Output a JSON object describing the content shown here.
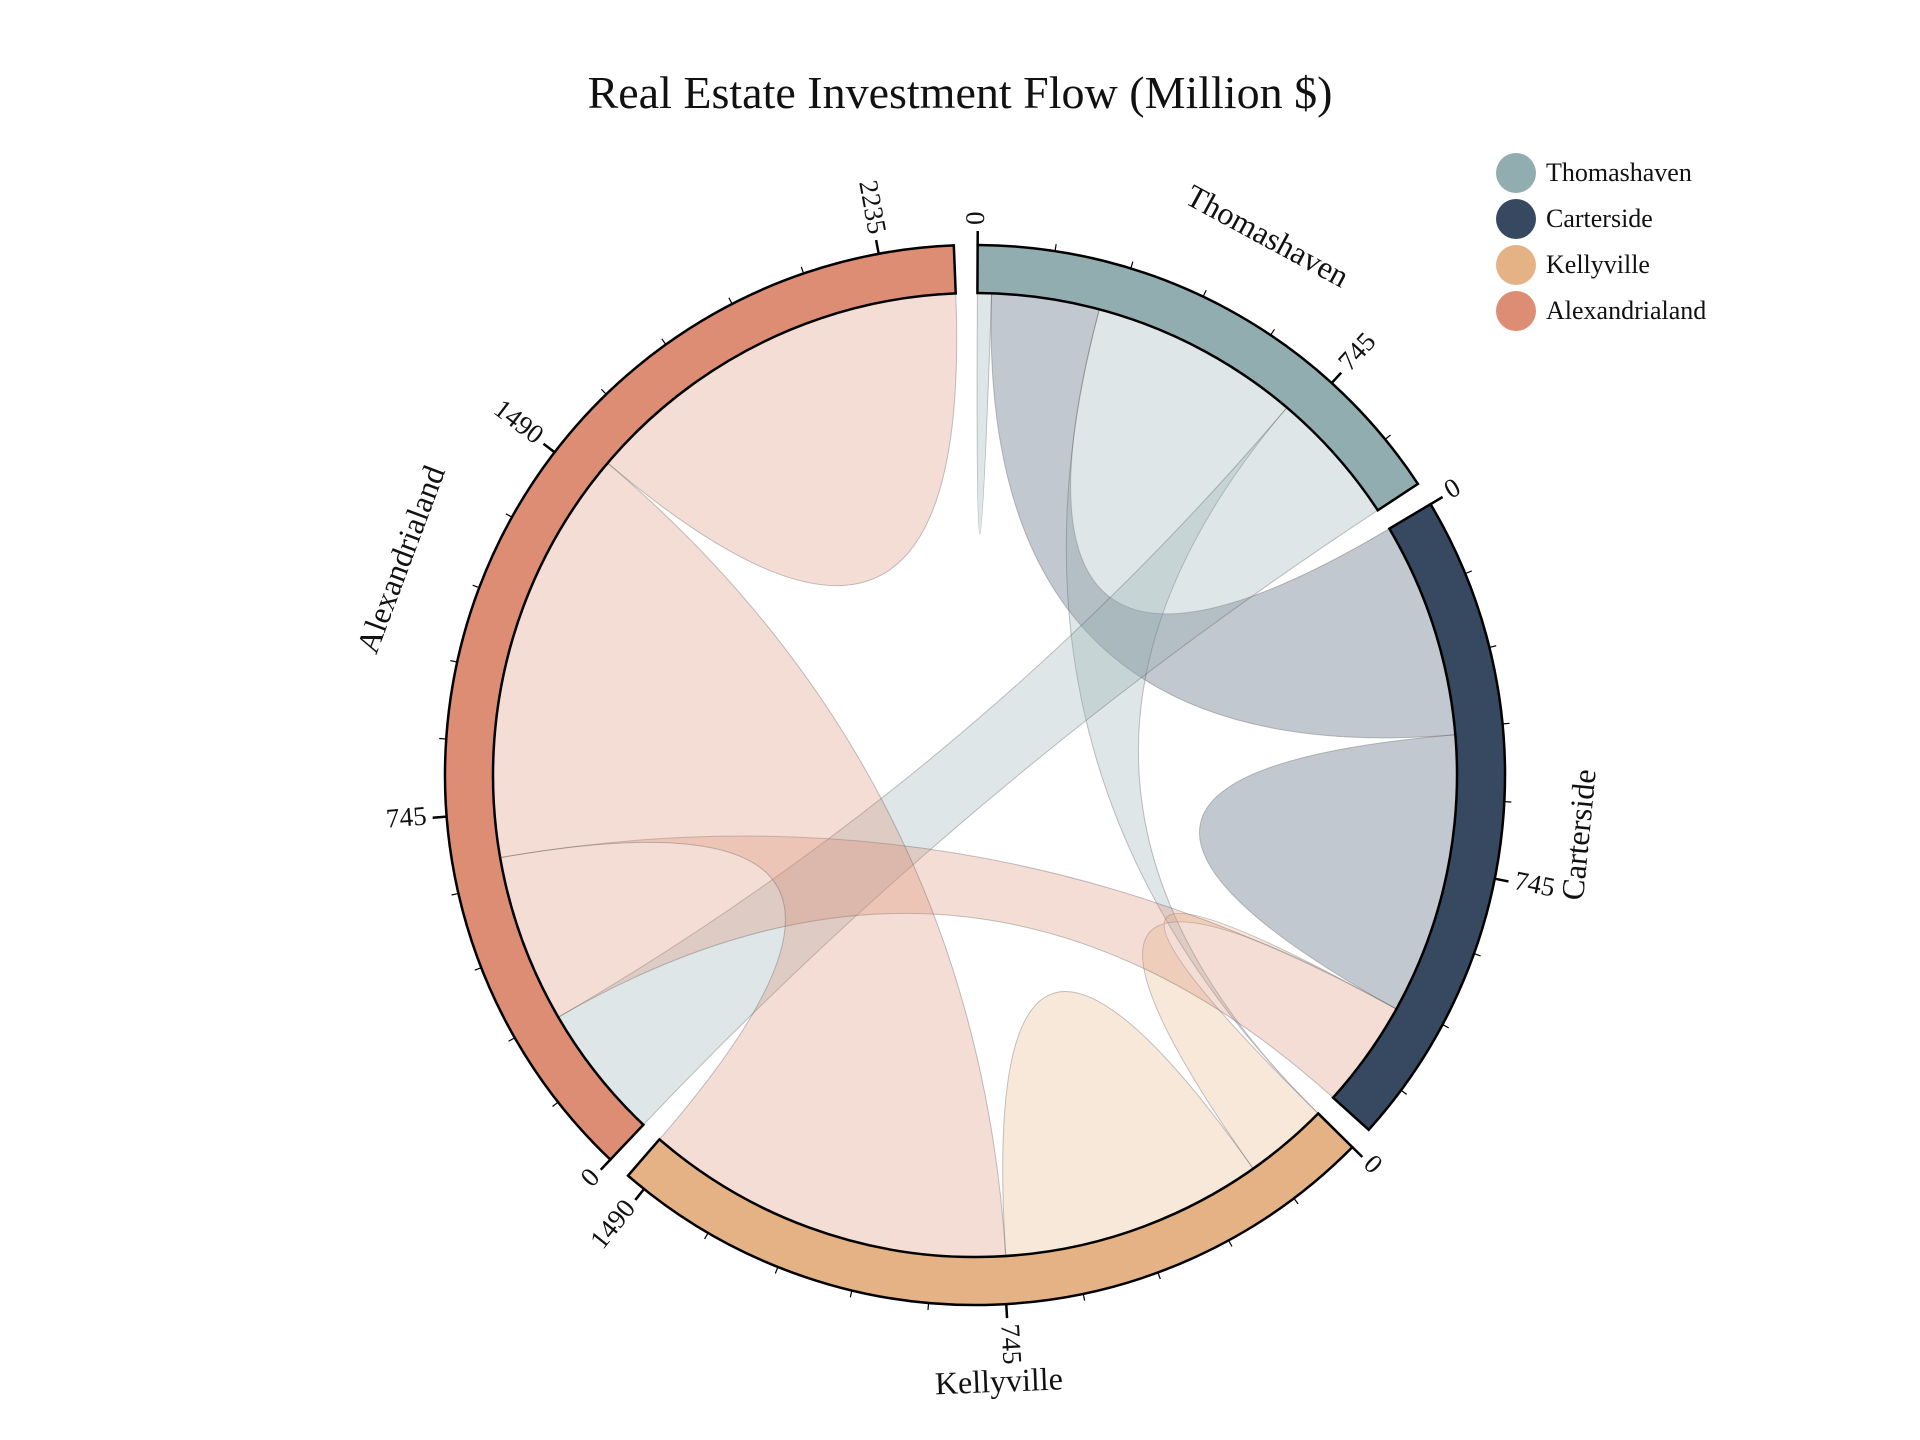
{
  "chart_data": {
    "type": "chord",
    "title": "Real Estate Investment Flow (Million $)",
    "nodes": [
      {
        "name": "Thomashaven",
        "color": "#91adb0"
      },
      {
        "name": "Carterside",
        "color": "#364960"
      },
      {
        "name": "Kellyville",
        "color": "#e4b284"
      },
      {
        "name": "Alexandrialand",
        "color": "#dc8d74"
      }
    ],
    "matrix": [
      [
        30,
        230,
        450,
        290
      ],
      [
        460,
        600,
        0,
        230
      ],
      [
        0,
        180,
        560,
        790
      ],
      [
        290,
        360,
        890,
        840
      ]
    ],
    "tick_step": 745,
    "ticks": {
      "Thomashaven": [
        "0",
        "745"
      ],
      "Carterside": [
        "0",
        "745"
      ],
      "Kellyville": [
        "0",
        "745",
        "1490"
      ],
      "Alexandrialand": [
        "0",
        "745",
        "1490",
        "2235"
      ]
    }
  }
}
